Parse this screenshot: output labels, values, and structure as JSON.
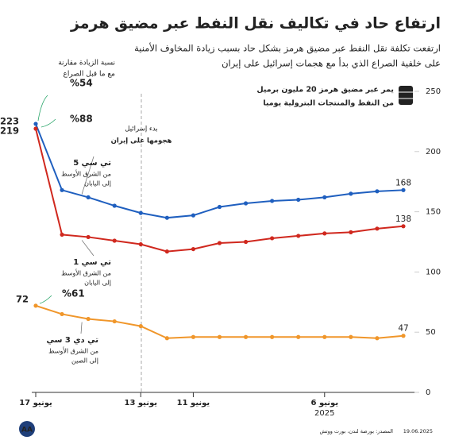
{
  "header": {
    "title": "ارتفاع حاد في تكاليف نقل النفط عبر مضيق هرمز",
    "subtitle": [
      "ارتفعت تكلفة نقل النفط عبر مضيق هرمز بشكل حاد بسبب زيادة المخاوف الأمنية",
      "على خلفية الصراع الذي بدأ مع هجمات إسرائيل على إيران"
    ]
  },
  "chart_data": {
    "type": "line",
    "categories": [
      "17 يونيو",
      null,
      null,
      null,
      "13 يونيو",
      null,
      "11 يونيو",
      null,
      null,
      null,
      null,
      "6 يونيو",
      null,
      null,
      null
    ],
    "x_year": "2025",
    "ylim": [
      0,
      250
    ],
    "yticks": [
      0,
      50,
      100,
      150,
      200,
      250
    ],
    "grid": false,
    "series": [
      {
        "name": "تي سي 5",
        "route": [
          "من الشرق الأوسط",
          "إلى اليابان"
        ],
        "color": "#1f5fbf",
        "increase_label": "%54",
        "values": [
          223,
          168,
          162,
          155,
          149,
          145,
          147,
          154,
          157,
          159,
          160,
          162,
          165,
          167,
          168
        ]
      },
      {
        "name": "تي سي 1",
        "route": [
          "من الشرق الأوسط",
          "إلى اليابان"
        ],
        "color": "#d0281e",
        "increase_label": "%88",
        "values": [
          219,
          131,
          129,
          126,
          123,
          117,
          119,
          124,
          125,
          128,
          130,
          132,
          133,
          136,
          138
        ]
      },
      {
        "name": "تي دي 3 سي",
        "route": [
          "من الشرق الأوسط",
          "إلى الصين"
        ],
        "color": "#f0962a",
        "increase_label": "%61",
        "values": [
          72,
          65,
          61,
          59,
          55,
          45,
          46,
          46,
          46,
          46,
          46,
          46,
          46,
          45,
          47
        ]
      }
    ],
    "increase_note": [
      "نسبة الزيادة مقارنة",
      "مع ما قبل الصراع"
    ],
    "event": [
      "بدء إسرائيل",
      "هجومها على إيران"
    ],
    "note": [
      "يمر عبر مضيق هرمز 20 مليون برميل",
      "من النفط والمنتجات البترولية يوميا"
    ]
  },
  "footer": {
    "source": "المصدر: بورصة لندن، بورت ووتش",
    "date": "19.06.2025",
    "logo": "AA"
  }
}
